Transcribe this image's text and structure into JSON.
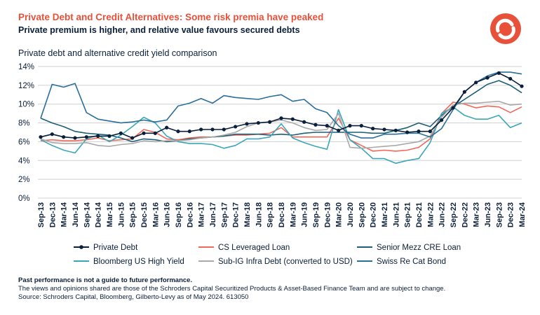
{
  "header": {
    "title": "Private Debt and Credit Alternatives: Some risk premia have peaked",
    "subtitle": "Private premium is higher, and relative value favours secured debts",
    "chart_label": "Private debt and alternative credit yield comparison"
  },
  "colors": {
    "brand": "#e8503a",
    "navy": "#0b1f3a",
    "private_debt": "#0b1f3a",
    "cs_leveraged_loan": "#f0685a",
    "senior_mezz_cre": "#1b5f78",
    "bloomberg_hy": "#3aa7b8",
    "sub_ig_infra": "#a9a9a9",
    "swiss_re_cat": "#2a6e9a"
  },
  "chart_data": {
    "type": "line",
    "x": [
      "Sep-13",
      "Dec-13",
      "Mar-14",
      "Jun-14",
      "Sep-14",
      "Dec-14",
      "Mar-15",
      "Jun-15",
      "Sep-15",
      "Dec-15",
      "Mar-16",
      "Jun-16",
      "Sep-16",
      "Dec-16",
      "Mar-17",
      "Jun-17",
      "Sep-17",
      "Dec-17",
      "Mar-18",
      "Jun-18",
      "Sep-18",
      "Dec-18",
      "Mar-19",
      "Jun-19",
      "Sep-19",
      "Dec-19",
      "Mar-20",
      "Jun-20",
      "Sep-20",
      "Dec-20",
      "Mar-21",
      "Jun-21",
      "Sep-21",
      "Dec-21",
      "Mar-22",
      "Jun-22",
      "Sep-22",
      "Dec-22",
      "Mar-23",
      "Jun-23",
      "Sep-23",
      "Dec-23",
      "Mar-24"
    ],
    "y_ticks": [
      "0%",
      "2%",
      "4%",
      "6%",
      "8%",
      "10%",
      "12%",
      "14%"
    ],
    "ylim": [
      0,
      14
    ],
    "grid": true,
    "legend_position": "bottom",
    "series": [
      {
        "name": "Private Debt",
        "color": "#0b1f3a",
        "markers": true,
        "values": [
          6.5,
          6.8,
          6.5,
          6.4,
          6.5,
          6.6,
          6.6,
          6.9,
          6.4,
          6.9,
          6.9,
          7.5,
          7.1,
          7.1,
          7.3,
          7.3,
          7.3,
          7.6,
          7.9,
          8.0,
          8.1,
          8.5,
          8.4,
          8.1,
          7.8,
          7.7,
          7.2,
          7.7,
          7.7,
          7.4,
          7.3,
          7.2,
          7.0,
          7.1,
          7.1,
          8.3,
          9.6,
          11.3,
          12.3,
          12.8,
          13.3,
          12.7,
          11.9
        ]
      },
      {
        "name": "CS Leveraged Loan",
        "color": "#f0685a",
        "values": [
          6.1,
          6.2,
          6.1,
          6.1,
          6.2,
          6.4,
          6.1,
          6.2,
          6.3,
          7.3,
          7.0,
          6.3,
          6.2,
          6.4,
          6.5,
          6.5,
          6.6,
          6.7,
          6.7,
          6.8,
          6.9,
          7.5,
          6.5,
          6.5,
          6.5,
          6.5,
          8.5,
          6.2,
          5.6,
          5.0,
          5.1,
          5.0,
          5.1,
          5.4,
          6.3,
          9.0,
          10.2,
          10.0,
          9.6,
          9.8,
          9.7,
          9.1,
          9.7
        ]
      },
      {
        "name": "Senior Mezz CRE Loan",
        "color": "#1b5f78",
        "values": [
          8.5,
          8.0,
          7.6,
          7.1,
          6.9,
          6.8,
          6.7,
          6.4,
          6.0,
          6.3,
          6.2,
          6.0,
          6.1,
          6.3,
          6.4,
          6.5,
          6.6,
          6.8,
          6.8,
          6.8,
          6.7,
          6.8,
          6.7,
          6.9,
          7.0,
          7.0,
          7.0,
          7.0,
          7.0,
          6.9,
          6.9,
          7.2,
          7.5,
          8.0,
          7.6,
          8.8,
          9.7,
          10.5,
          11.3,
          12.1,
          12.5,
          12.0,
          11.2
        ]
      },
      {
        "name": "Bloomberg US High Yield",
        "color": "#3aa7b8",
        "values": [
          6.2,
          5.6,
          5.1,
          4.8,
          6.3,
          6.7,
          6.0,
          6.7,
          7.6,
          8.6,
          8.0,
          6.6,
          6.0,
          5.8,
          5.8,
          5.7,
          5.3,
          5.6,
          6.3,
          6.3,
          6.5,
          7.9,
          6.4,
          5.9,
          5.5,
          5.2,
          9.4,
          6.2,
          5.3,
          4.2,
          4.2,
          3.7,
          4.0,
          4.2,
          5.9,
          9.0,
          9.7,
          8.8,
          8.4,
          8.4,
          8.8,
          7.5,
          8.0
        ]
      },
      {
        "name": "Sub-IG Infra Debt (converted to USD)",
        "color": "#a9a9a9",
        "values": [
          6.3,
          5.9,
          5.8,
          5.8,
          5.9,
          5.6,
          5.5,
          5.7,
          5.8,
          6.1,
          6.0,
          6.1,
          6.1,
          6.2,
          6.4,
          6.5,
          6.7,
          7.0,
          7.6,
          8.0,
          8.1,
          8.3,
          8.0,
          7.5,
          7.2,
          7.3,
          9.0,
          5.4,
          5.3,
          5.4,
          5.5,
          5.6,
          5.8,
          6.0,
          6.6,
          8.6,
          9.9,
          10.1,
          10.1,
          10.2,
          10.3,
          9.9,
          10.0
        ]
      },
      {
        "name": "Swiss Re Cat Bond",
        "color": "#2a6e9a",
        "values": [
          8.5,
          12.1,
          11.8,
          12.2,
          9.1,
          8.4,
          8.2,
          8.0,
          8.1,
          8.3,
          8.1,
          8.3,
          9.8,
          10.1,
          10.6,
          10.1,
          10.9,
          10.7,
          10.6,
          10.5,
          10.8,
          11.0,
          10.3,
          10.5,
          9.5,
          9.1,
          7.7,
          6.8,
          6.4,
          6.4,
          6.8,
          6.8,
          6.9,
          6.9,
          6.5,
          7.4,
          9.4,
          11.3,
          12.3,
          13.0,
          13.4,
          13.4,
          13.2
        ]
      }
    ]
  },
  "footnotes": {
    "line1": "Past performance is not a guide to future performance.",
    "line2": "The views and opinions shared are those of the Schroders Capital Securitized Products & Asset-Based Finance Team and are subject to change.",
    "line3": "Source: Schroders Capital, Bloomberg, Gilberto-Levy as of May 2024. 613050"
  }
}
